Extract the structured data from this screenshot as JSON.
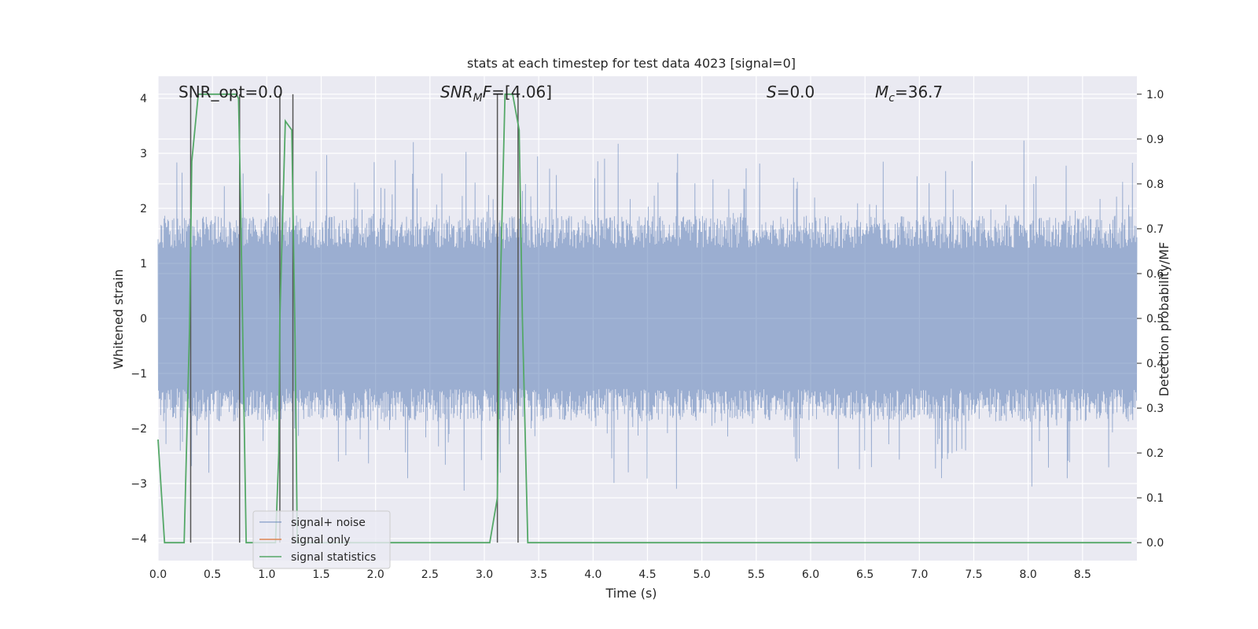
{
  "chart_data": {
    "type": "line",
    "title": "stats at each timestep for test data 4023 [signal=0]",
    "xlabel": "Time (s)",
    "ylabel_left": "Whitened strain",
    "ylabel_right": "Detection probability/MF",
    "xlim": [
      0,
      9.0
    ],
    "ylim_left": [
      -4.4,
      4.4
    ],
    "ylim_right": [
      -0.04,
      1.04
    ],
    "xticks": [
      0.0,
      0.5,
      1.0,
      1.5,
      2.0,
      2.5,
      3.0,
      3.5,
      4.0,
      4.5,
      5.0,
      5.5,
      6.0,
      6.5,
      7.0,
      7.5,
      8.0,
      8.5
    ],
    "xtick_labels": [
      "0.0",
      "0.5",
      "1.0",
      "1.5",
      "2.0",
      "2.5",
      "3.0",
      "3.5",
      "4.0",
      "4.5",
      "5.0",
      "5.5",
      "6.0",
      "6.5",
      "7.0",
      "7.5",
      "8.0",
      "8.5"
    ],
    "yticks_left": [
      -4,
      -3,
      -2,
      -1,
      0,
      1,
      2,
      3,
      4
    ],
    "ytick_labels_left": [
      "−4",
      "−3",
      "−2",
      "−1",
      "0",
      "1",
      "2",
      "3",
      "4"
    ],
    "yticks_right": [
      0.0,
      0.1,
      0.2,
      0.3,
      0.4,
      0.5,
      0.6,
      0.7,
      0.8,
      0.9,
      1.0
    ],
    "ytick_labels_right": [
      "0.0",
      "0.1",
      "0.2",
      "0.3",
      "0.4",
      "0.5",
      "0.6",
      "0.7",
      "0.8",
      "0.9",
      "1.0"
    ],
    "grid": true,
    "legend_placement": "lower-left",
    "annotations": {
      "snr_opt": {
        "prefix": "SNR_opt=0.0"
      },
      "snr_mf": {
        "base": "SNR",
        "sub": "M",
        "mid": "F",
        "rest": "=[4.06]"
      },
      "s_val": {
        "base": "S",
        "rest": "=0.0"
      },
      "mc_val": {
        "base": "M",
        "sub": "c",
        "rest": "=36.7"
      }
    },
    "series": [
      {
        "name": "signal+ noise",
        "color": "#4c72b0",
        "noise_band": [
          -1.7,
          1.7
        ]
      },
      {
        "name": "signal only",
        "color": "#dd8452",
        "values": []
      },
      {
        "name": "signal statistics",
        "color": "#55a868",
        "x": [
          0.0,
          0.06,
          0.24,
          0.29,
          0.31,
          0.37,
          0.42,
          0.72,
          0.74,
          0.76,
          0.81,
          1.08,
          1.11,
          1.12,
          1.17,
          1.23,
          1.26,
          1.28,
          3.05,
          3.12,
          3.14,
          3.19,
          3.26,
          3.32,
          3.35,
          3.4,
          8.95
        ],
        "y": [
          0.23,
          0.0,
          0.0,
          0.48,
          0.85,
          1.0,
          1.0,
          1.0,
          0.99,
          0.75,
          0.0,
          0.0,
          0.2,
          0.5,
          0.94,
          0.92,
          0.45,
          0.0,
          0.0,
          0.1,
          0.5,
          1.0,
          1.0,
          0.92,
          0.5,
          0.0,
          0.0
        ]
      }
    ],
    "vertical_lines": [
      0.3,
      0.75,
      1.12,
      1.24,
      3.12,
      3.31
    ],
    "vertical_line_color": "#555555"
  }
}
